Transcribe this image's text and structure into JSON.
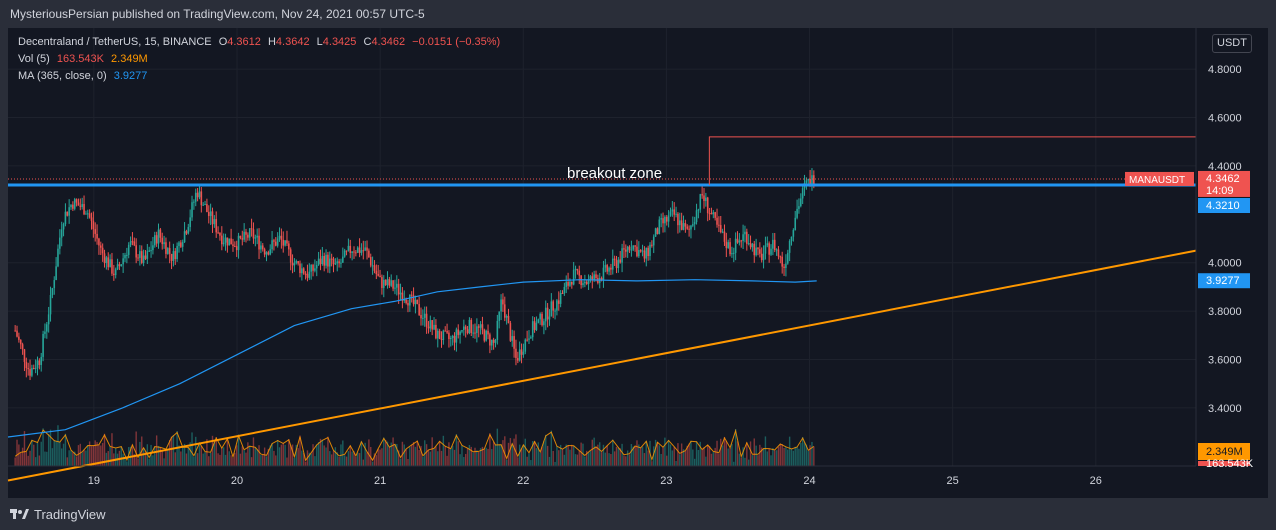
{
  "header": {
    "published": "MysteriousPersian published on TradingView.com, Nov 24, 2021 00:57 UTC-5"
  },
  "legend": {
    "symbol": "Decentraland / TetherUS, 15, BINANCE",
    "o_label": "O",
    "o_value": "4.3612",
    "h_label": "H",
    "h_value": "4.3642",
    "l_label": "L",
    "l_value": "4.3425",
    "c_label": "C",
    "c_value": "4.3462",
    "change": "−0.0151 (−0.35%)",
    "vol_label": "Vol (5)",
    "vol_value1": "163.543K",
    "vol_value2": "2.349M",
    "ma_label": "MA (365, close, 0)",
    "ma_value": "3.9277"
  },
  "currency_button": "USDT",
  "footer": {
    "brand": "TradingView"
  },
  "chart_data": {
    "type": "line",
    "title": "Decentraland / TetherUS, 15, BINANCE",
    "price_axis": {
      "ticks": [
        4.8,
        4.6,
        4.4,
        4.0,
        3.8,
        3.6,
        3.4
      ],
      "tick_labels": [
        "4.8000",
        "4.6000",
        "4.4000",
        "4.0000",
        "3.8000",
        "3.6000",
        "3.4000"
      ],
      "range": [
        3.16,
        4.97
      ]
    },
    "time_axis": {
      "ticks": [
        19,
        20,
        21,
        22,
        23,
        24,
        25,
        26
      ],
      "tick_labels": [
        "19",
        "20",
        "21",
        "22",
        "23",
        "24",
        "25",
        "26"
      ],
      "range": [
        18.4,
        26.7
      ]
    },
    "price_series": {
      "name": "MANAUSDT",
      "points": [
        [
          18.45,
          3.72
        ],
        [
          18.55,
          3.55
        ],
        [
          18.62,
          3.6
        ],
        [
          18.7,
          3.85
        ],
        [
          18.78,
          4.18
        ],
        [
          18.85,
          4.25
        ],
        [
          18.95,
          4.22
        ],
        [
          19.05,
          4.05
        ],
        [
          19.15,
          3.95
        ],
        [
          19.25,
          4.08
        ],
        [
          19.35,
          4.0
        ],
        [
          19.45,
          4.12
        ],
        [
          19.55,
          4.02
        ],
        [
          19.65,
          4.15
        ],
        [
          19.72,
          4.3
        ],
        [
          19.8,
          4.2
        ],
        [
          19.9,
          4.1
        ],
        [
          20.0,
          4.08
        ],
        [
          20.1,
          4.12
        ],
        [
          20.2,
          4.05
        ],
        [
          20.3,
          4.1
        ],
        [
          20.4,
          4.0
        ],
        [
          20.5,
          3.95
        ],
        [
          20.6,
          4.02
        ],
        [
          20.7,
          3.98
        ],
        [
          20.8,
          4.06
        ],
        [
          20.9,
          4.05
        ],
        [
          21.0,
          3.92
        ],
        [
          21.1,
          3.9
        ],
        [
          21.2,
          3.85
        ],
        [
          21.3,
          3.78
        ],
        [
          21.4,
          3.7
        ],
        [
          21.5,
          3.68
        ],
        [
          21.6,
          3.74
        ],
        [
          21.7,
          3.72
        ],
        [
          21.8,
          3.66
        ],
        [
          21.85,
          3.85
        ],
        [
          21.95,
          3.6
        ],
        [
          22.05,
          3.72
        ],
        [
          22.15,
          3.78
        ],
        [
          22.25,
          3.85
        ],
        [
          22.35,
          3.95
        ],
        [
          22.45,
          3.92
        ],
        [
          22.55,
          3.95
        ],
        [
          22.65,
          4.0
        ],
        [
          22.75,
          4.08
        ],
        [
          22.85,
          4.02
        ],
        [
          22.95,
          4.15
        ],
        [
          23.05,
          4.2
        ],
        [
          23.15,
          4.12
        ],
        [
          23.25,
          4.28
        ],
        [
          23.35,
          4.15
        ],
        [
          23.45,
          4.05
        ],
        [
          23.55,
          4.12
        ],
        [
          23.65,
          4.02
        ],
        [
          23.75,
          4.08
        ],
        [
          23.82,
          3.98
        ],
        [
          23.9,
          4.2
        ],
        [
          23.97,
          4.32
        ],
        [
          24.03,
          4.35
        ]
      ]
    },
    "ma_series": {
      "name": "MA (365, close, 0)",
      "points": [
        [
          18.4,
          3.28
        ],
        [
          18.8,
          3.31
        ],
        [
          19.2,
          3.4
        ],
        [
          19.6,
          3.5
        ],
        [
          20.0,
          3.62
        ],
        [
          20.4,
          3.74
        ],
        [
          20.8,
          3.81
        ],
        [
          21.1,
          3.84
        ],
        [
          21.4,
          3.88
        ],
        [
          21.7,
          3.9
        ],
        [
          22.0,
          3.92
        ],
        [
          22.4,
          3.93
        ],
        [
          22.8,
          3.925
        ],
        [
          23.2,
          3.93
        ],
        [
          23.6,
          3.925
        ],
        [
          23.9,
          3.92
        ],
        [
          24.05,
          3.925
        ]
      ]
    },
    "resistance_level": {
      "value": 4.321,
      "label": "breakout zone"
    },
    "trendline": {
      "start": [
        18.4,
        3.1
      ],
      "end": [
        26.7,
        4.05
      ]
    },
    "measure_box": {
      "x_start": 23.3,
      "x_end": 26.7,
      "top": 4.52,
      "bottom": 4.321
    },
    "price_labels": [
      {
        "name": "MANAUSDT",
        "value": "4.3462",
        "sub": "14:09",
        "color": "#ef5350"
      },
      {
        "name": "level",
        "value": "4.3210",
        "color": "#2196f3"
      },
      {
        "name": "ma",
        "value": "3.9277",
        "color": "#2196f3"
      },
      {
        "name": "vol",
        "value": "2.349M",
        "color": "#ff9800"
      },
      {
        "name": "vol2",
        "value": "163.543K",
        "color": "#ef5350"
      }
    ],
    "colors": {
      "up": "#26a69a",
      "down": "#ef5350",
      "ma": "#2196f3",
      "trendline": "#ff9800",
      "level": "#2196f3",
      "measure": "#ef5350"
    }
  }
}
